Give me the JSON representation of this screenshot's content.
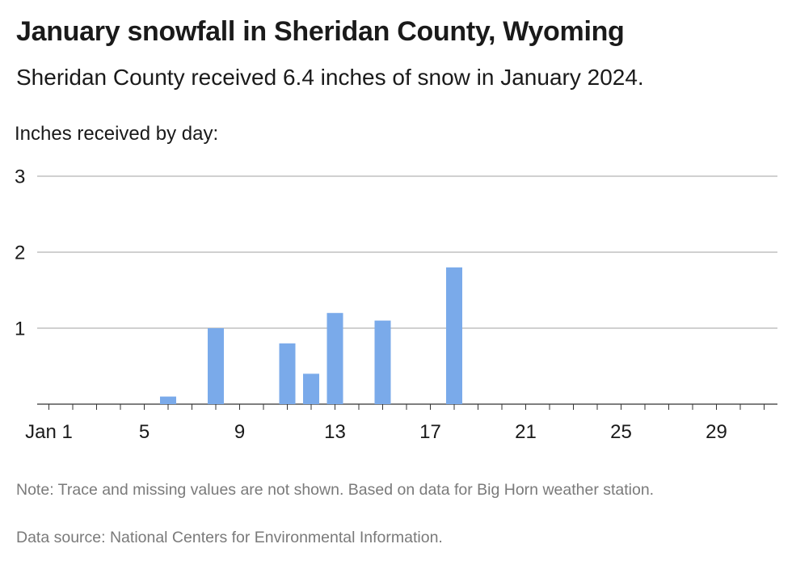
{
  "chart_data": {
    "type": "bar",
    "title": "January snowfall in Sheridan County, Wyoming",
    "subtitle": "Sheridan County received 6.4 inches of snow in January 2024.",
    "ylabel": "Inches received by day:",
    "xlabel": "",
    "x_ticks": [
      {
        "day": 1,
        "label": "Jan 1"
      },
      {
        "day": 5,
        "label": "5"
      },
      {
        "day": 9,
        "label": "9"
      },
      {
        "day": 13,
        "label": "13"
      },
      {
        "day": 17,
        "label": "17"
      },
      {
        "day": 21,
        "label": "21"
      },
      {
        "day": 25,
        "label": "25"
      },
      {
        "day": 29,
        "label": "29"
      }
    ],
    "y_ticks": [
      1,
      2,
      3
    ],
    "ylim": [
      0,
      3
    ],
    "xlim": [
      1,
      31
    ],
    "grid": true,
    "bar_color": "#7aaaea",
    "bars": [
      {
        "day": 6,
        "value": 0.1
      },
      {
        "day": 8,
        "value": 1.0
      },
      {
        "day": 11,
        "value": 0.8
      },
      {
        "day": 12,
        "value": 0.4
      },
      {
        "day": 13,
        "value": 1.2
      },
      {
        "day": 15,
        "value": 1.1
      },
      {
        "day": 18,
        "value": 1.8
      }
    ],
    "note": "Note: Trace and missing values are not shown. Based on data for Big Horn weather station.",
    "source": "Data source: National Centers for Environmental Information."
  }
}
